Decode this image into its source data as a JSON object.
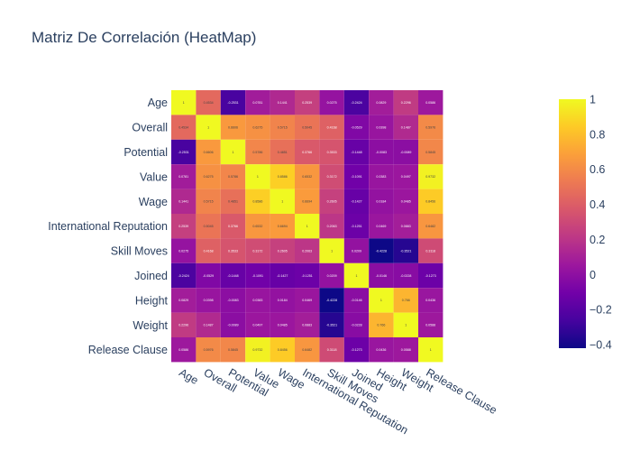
{
  "chart_data": {
    "type": "heatmap",
    "title": "Matriz De Correlación (HeatMap)",
    "labels": [
      "Age",
      "Overall",
      "Potential",
      "Value",
      "Wage",
      "International Reputation",
      "Skill Moves",
      "Joined",
      "Height",
      "Weight",
      "Release Clause"
    ],
    "matrix": [
      [
        1,
        0.4534,
        -0.2531,
        0.0781,
        0.1441,
        0.2539,
        0.0275,
        -0.2424,
        0.0829,
        0.2296,
        0.0586
      ],
      [
        0.4534,
        1,
        0.6606,
        0.6275,
        0.5715,
        0.5045,
        0.4168,
        -0.0529,
        0.0398,
        0.1487,
        0.5976
      ],
      [
        -0.2531,
        0.6606,
        1,
        0.5786,
        0.4851,
        0.3766,
        0.3533,
        -0.1448,
        -0.0083,
        -0.0089,
        0.5845
      ],
      [
        0.0781,
        0.6275,
        0.5786,
        1,
        0.8586,
        0.6532,
        0.3172,
        -0.1091,
        0.0383,
        0.0497,
        0.9732
      ],
      [
        0.1441,
        0.5715,
        0.4851,
        0.8586,
        1,
        0.6694,
        0.2605,
        -0.1427,
        0.0184,
        0.0485,
        0.8456
      ],
      [
        0.2539,
        0.5045,
        0.3766,
        0.6532,
        0.6694,
        1,
        0.2063,
        -0.1251,
        0.0469,
        0.0883,
        0.6482
      ],
      [
        0.0275,
        0.4168,
        0.3533,
        0.3172,
        0.2605,
        0.2063,
        1,
        0.0209,
        -0.4228,
        -0.3521,
        0.3118
      ],
      [
        -0.2424,
        -0.0529,
        -0.1448,
        -0.1091,
        -0.1427,
        -0.1251,
        0.0209,
        1,
        -0.0146,
        -0.0228,
        -0.1273
      ],
      [
        0.0829,
        0.0398,
        -0.0083,
        0.0383,
        0.0184,
        0.0469,
        -0.4228,
        -0.0146,
        1,
        0.766,
        0.0436
      ],
      [
        0.2296,
        0.1487,
        -0.0089,
        0.0497,
        0.0485,
        0.0883,
        -0.3521,
        -0.0228,
        0.766,
        1,
        0.0588
      ],
      [
        0.0586,
        0.5976,
        0.5845,
        0.9732,
        0.8456,
        0.6482,
        0.3118,
        -0.1273,
        0.0436,
        0.0588,
        1
      ]
    ],
    "colorbar": {
      "min": -0.42,
      "max": 1,
      "ticks": [
        1,
        0.8,
        0.6,
        0.4,
        0.2,
        0,
        -0.2,
        -0.4
      ],
      "colorscale": "plasma"
    }
  },
  "colors": {
    "text": "#2a3f5f"
  }
}
